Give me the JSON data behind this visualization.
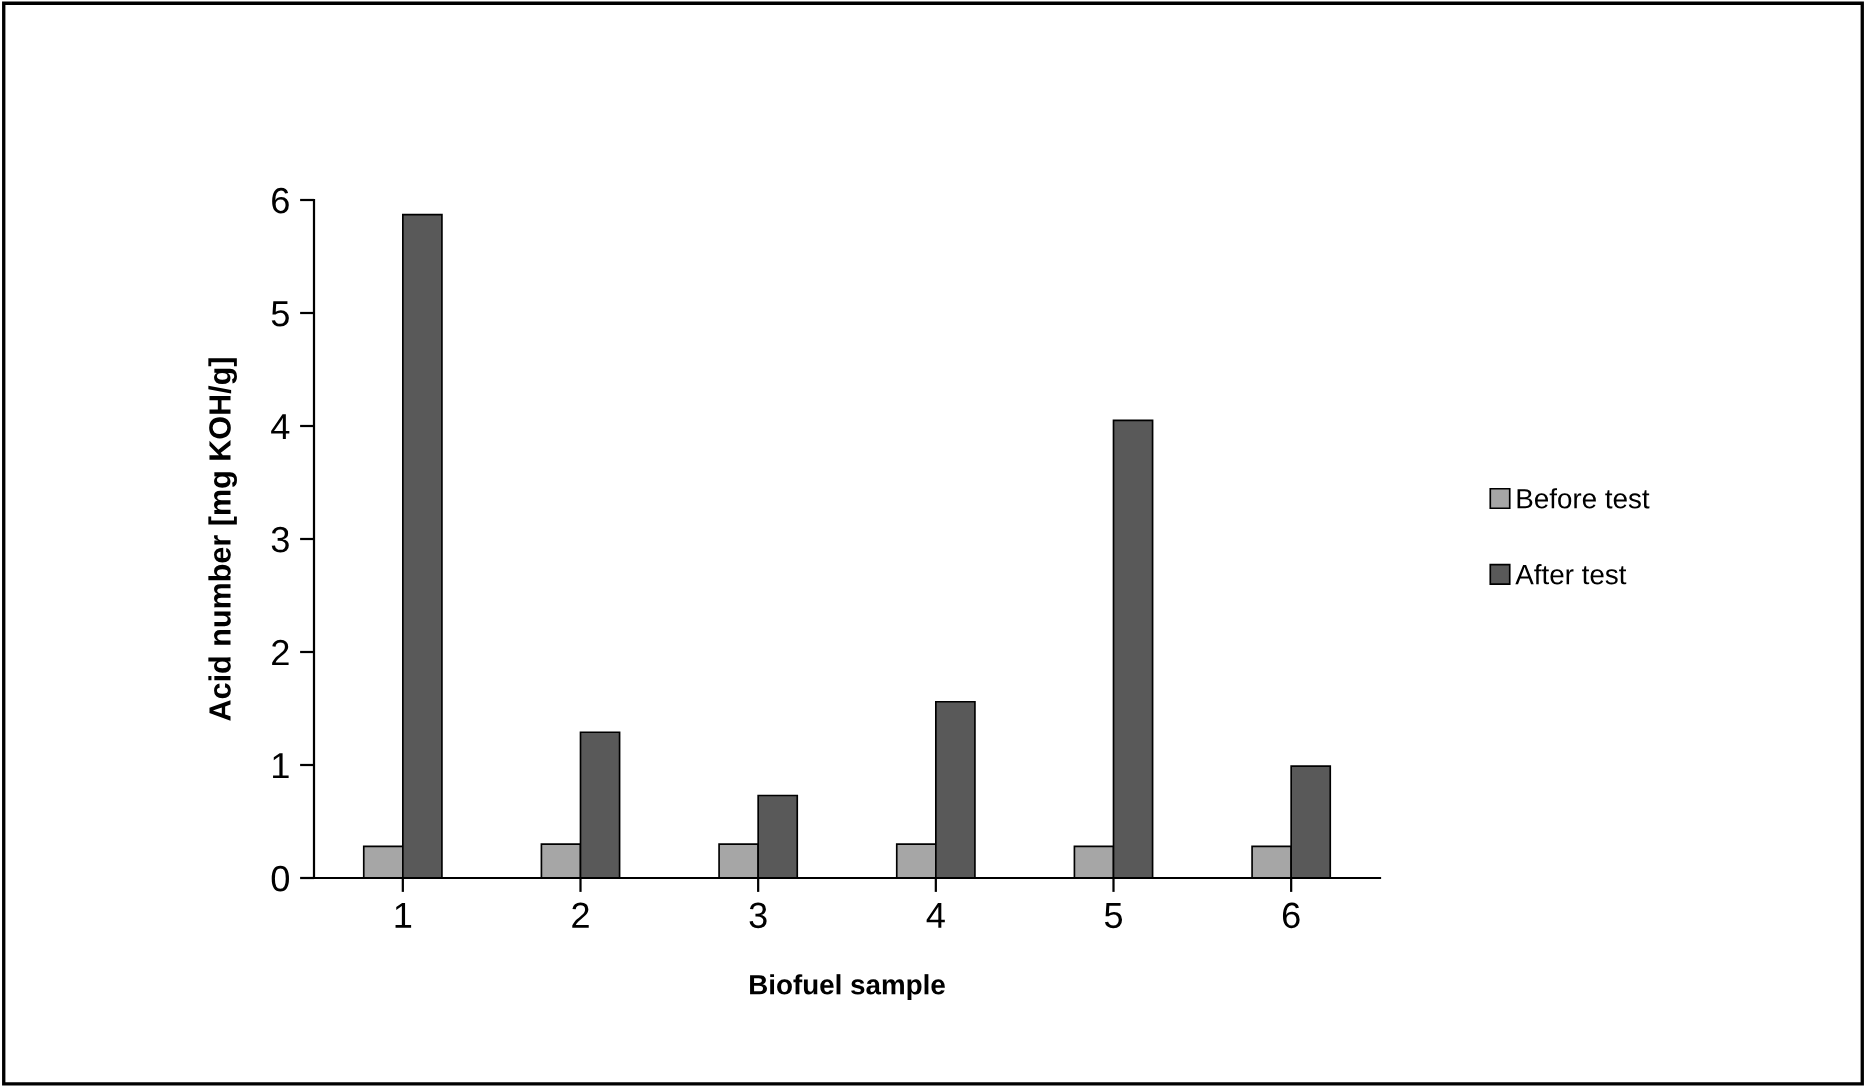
{
  "chart_data": {
    "type": "bar",
    "xlabel": "Biofuel sample",
    "ylabel": "Acid number [mg KOH/g]",
    "categories": [
      "1",
      "2",
      "3",
      "4",
      "5",
      "6"
    ],
    "series": [
      {
        "name": "Before test",
        "color": "#a6a6a6",
        "values": [
          0.28,
          0.3,
          0.3,
          0.3,
          0.28,
          0.28
        ]
      },
      {
        "name": "After test",
        "color": "#595959",
        "values": [
          5.87,
          1.29,
          0.73,
          1.56,
          4.05,
          0.99
        ]
      }
    ],
    "ylim": [
      0,
      6
    ],
    "yticks": [
      0,
      1,
      2,
      3,
      4,
      5,
      6
    ],
    "grid": false,
    "legend": "right"
  }
}
